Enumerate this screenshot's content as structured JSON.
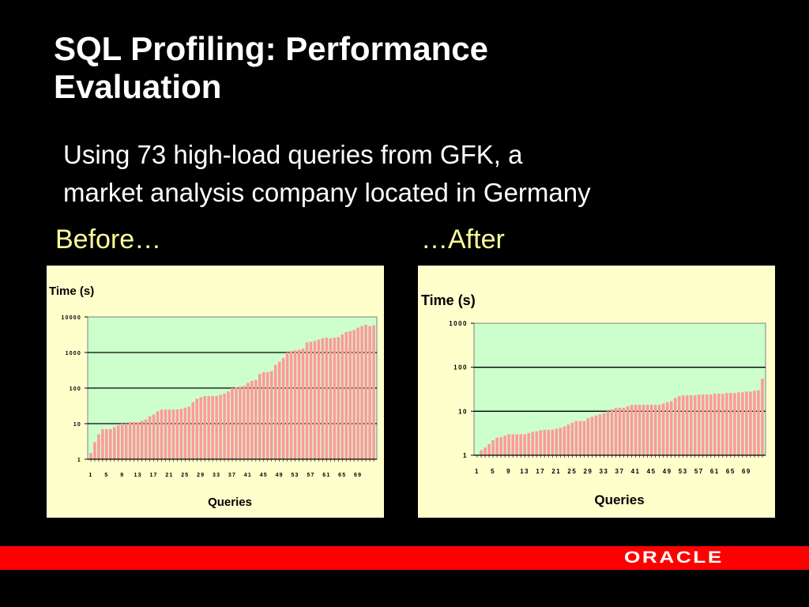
{
  "slide": {
    "title_line1": "SQL Profiling: Performance",
    "title_line2": "Evaluation",
    "subtitle_line1": "Using 73 high-load queries from GFK, a",
    "subtitle_line2": "market analysis company located in Germany",
    "caption_before": "Before…",
    "caption_after": "…After",
    "logo_text": "ORACLE"
  },
  "colors": {
    "background": "#000000",
    "title": "#ffffff",
    "caption": "#ffff99",
    "panel": "#ffffcc",
    "plot_area": "#ccffcc",
    "bar": "#ff9999",
    "footer_bar": "#ff0000"
  },
  "chart_data": [
    {
      "type": "bar",
      "ylabel": "Time (s)",
      "xlabel": "Queries",
      "yscale": "log",
      "ylim": [
        1,
        10000
      ],
      "yticks": [
        1,
        10,
        100,
        1000,
        10000
      ],
      "ytick_labels": [
        "1",
        "10",
        "100",
        "1000",
        "10000"
      ],
      "xtick_labels": [
        "1",
        "5",
        "9",
        "13",
        "17",
        "21",
        "25",
        "29",
        "33",
        "37",
        "41",
        "45",
        "49",
        "53",
        "57",
        "61",
        "65",
        "69"
      ],
      "grid": "horizontal",
      "x": [
        1,
        2,
        3,
        4,
        5,
        6,
        7,
        8,
        9,
        10,
        11,
        12,
        13,
        14,
        15,
        16,
        17,
        18,
        19,
        20,
        21,
        22,
        23,
        24,
        25,
        26,
        27,
        28,
        29,
        30,
        31,
        32,
        33,
        34,
        35,
        36,
        37,
        38,
        39,
        40,
        41,
        42,
        43,
        44,
        45,
        46,
        47,
        48,
        49,
        50,
        51,
        52,
        53,
        54,
        55,
        56,
        57,
        58,
        59,
        60,
        61,
        62,
        63,
        64,
        65,
        66,
        67,
        68,
        69,
        70,
        71,
        72,
        73
      ],
      "values": [
        1.5,
        3,
        5,
        7,
        7,
        7,
        8,
        9,
        10,
        10,
        11,
        11,
        11,
        12,
        13,
        16,
        18,
        22,
        25,
        25,
        25,
        25,
        25,
        26,
        28,
        30,
        40,
        50,
        55,
        60,
        60,
        60,
        60,
        65,
        70,
        80,
        100,
        105,
        110,
        115,
        140,
        160,
        170,
        250,
        280,
        280,
        300,
        450,
        550,
        700,
        1000,
        1100,
        1150,
        1200,
        1300,
        1900,
        2000,
        2100,
        2300,
        2500,
        2600,
        2500,
        2600,
        2700,
        3200,
        3800,
        4000,
        4300,
        5000,
        5500,
        6000,
        5500,
        5800
      ]
    },
    {
      "type": "bar",
      "ylabel": "Time (s)",
      "xlabel": "Queries",
      "yscale": "log",
      "ylim": [
        1,
        1000
      ],
      "yticks": [
        1,
        10,
        100,
        1000
      ],
      "ytick_labels": [
        "1",
        "10",
        "100",
        "1000"
      ],
      "xtick_labels": [
        "1",
        "5",
        "9",
        "13",
        "17",
        "21",
        "25",
        "29",
        "33",
        "37",
        "41",
        "45",
        "49",
        "53",
        "57",
        "61",
        "65",
        "69"
      ],
      "grid": "horizontal",
      "x": [
        1,
        2,
        3,
        4,
        5,
        6,
        7,
        8,
        9,
        10,
        11,
        12,
        13,
        14,
        15,
        16,
        17,
        18,
        19,
        20,
        21,
        22,
        23,
        24,
        25,
        26,
        27,
        28,
        29,
        30,
        31,
        32,
        33,
        34,
        35,
        36,
        37,
        38,
        39,
        40,
        41,
        42,
        43,
        44,
        45,
        46,
        47,
        48,
        49,
        50,
        51,
        52,
        53,
        54,
        55,
        56,
        57,
        58,
        59,
        60,
        61,
        62,
        63,
        64,
        65,
        66,
        67,
        68,
        69,
        70,
        71,
        72,
        73
      ],
      "values": [
        1,
        1.3,
        1.5,
        1.8,
        2.2,
        2.5,
        2.6,
        2.8,
        3,
        3,
        3,
        3,
        3,
        3.2,
        3.4,
        3.5,
        3.7,
        3.8,
        3.8,
        3.8,
        4,
        4.2,
        4.5,
        5,
        5.5,
        6,
        6,
        6,
        7,
        7.5,
        8,
        8.5,
        9,
        10,
        11,
        12,
        12,
        12,
        13,
        14,
        14,
        14,
        14,
        14,
        14,
        14,
        14,
        15,
        16,
        17,
        20,
        22,
        23,
        23,
        23,
        23,
        24,
        24,
        24,
        24,
        25,
        25,
        25,
        26,
        26,
        26,
        27,
        27,
        28,
        28,
        29,
        30,
        55
      ]
    }
  ]
}
